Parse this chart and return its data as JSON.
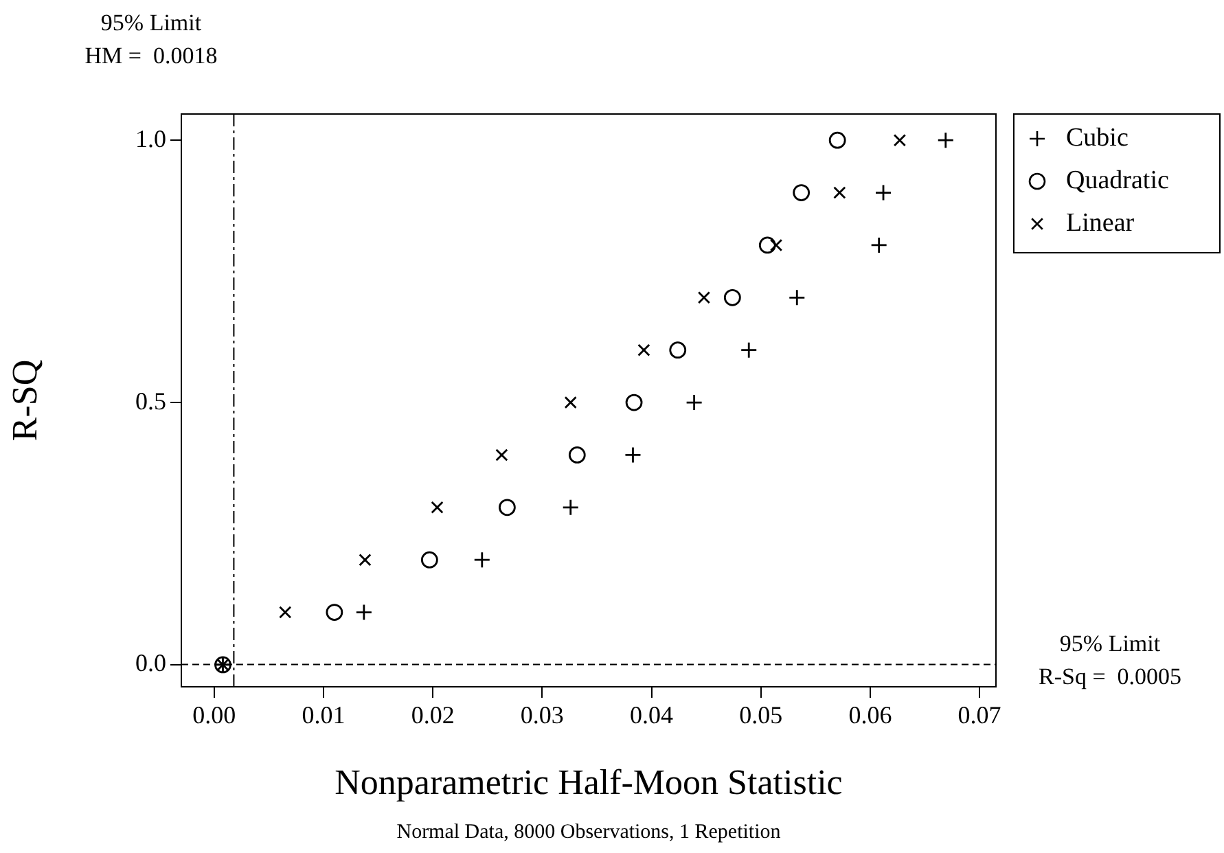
{
  "chart_data": {
    "type": "scatter",
    "xlabel": "Nonparametric Half-Moon Statistic",
    "ylabel": "R-SQ",
    "annotations": [
      "Normal Data, 8000 Observations, 1 Repetition"
    ],
    "xlim": [
      -0.003,
      0.0715
    ],
    "ylim": [
      -0.042,
      1.05
    ],
    "xticks": [
      {
        "value": 0,
        "label": "0.00"
      },
      {
        "value": 0.01,
        "label": "0.01"
      },
      {
        "value": 0.02,
        "label": "0.02"
      },
      {
        "value": 0.03,
        "label": "0.03"
      },
      {
        "value": 0.04,
        "label": "0.04"
      },
      {
        "value": 0.05,
        "label": "0.05"
      },
      {
        "value": 0.06,
        "label": "0.06"
      },
      {
        "value": 0.07,
        "label": "0.07"
      }
    ],
    "yticks": [
      {
        "value": 0,
        "label": "0.0"
      },
      {
        "value": 0.5,
        "label": "0.5"
      },
      {
        "value": 1,
        "label": "1.0"
      }
    ],
    "grid": false,
    "legend": "top right",
    "ref_lines": [
      {
        "axis": "x",
        "value": 0.0018,
        "label": "95% Limit\nHM =  0.0018",
        "line_style": "dashdot",
        "color": "#000000"
      },
      {
        "axis": "y",
        "value": 0.0005,
        "label": "95% Limit\nR-Sq =  0.0005",
        "line_style": "dashed",
        "color": "#000000"
      }
    ],
    "series": [
      {
        "name": "Cubic",
        "color": "#000000",
        "marker": "cross",
        "x": [
          0.0008,
          0.0137,
          0.0245,
          0.0326,
          0.0383,
          0.0439,
          0.0489,
          0.0533,
          0.0608,
          0.0612,
          0.0669
        ],
        "values": [
          0,
          0.1,
          0.2,
          0.3,
          0.4,
          0.5,
          0.6,
          0.7,
          0.8,
          0.9,
          1.0
        ]
      },
      {
        "name": "Quadratic",
        "color": "#000000",
        "marker": "circle",
        "x": [
          0.0008,
          0.011,
          0.0197,
          0.0268,
          0.0332,
          0.0384,
          0.0424,
          0.0474,
          0.0506,
          0.0537,
          0.057
        ],
        "values": [
          0,
          0.1,
          0.2,
          0.3,
          0.4,
          0.5,
          0.6,
          0.7,
          0.8,
          0.9,
          1.0
        ]
      },
      {
        "name": "Linear",
        "color": "#000000",
        "marker": "x",
        "x": [
          0.0008,
          0.0065,
          0.0138,
          0.0204,
          0.0263,
          0.0326,
          0.0393,
          0.0448,
          0.0514,
          0.0572,
          0.0627
        ],
        "values": [
          0,
          0.1,
          0.2,
          0.3,
          0.4,
          0.5,
          0.6,
          0.7,
          0.8,
          0.9,
          1.0
        ]
      }
    ]
  }
}
